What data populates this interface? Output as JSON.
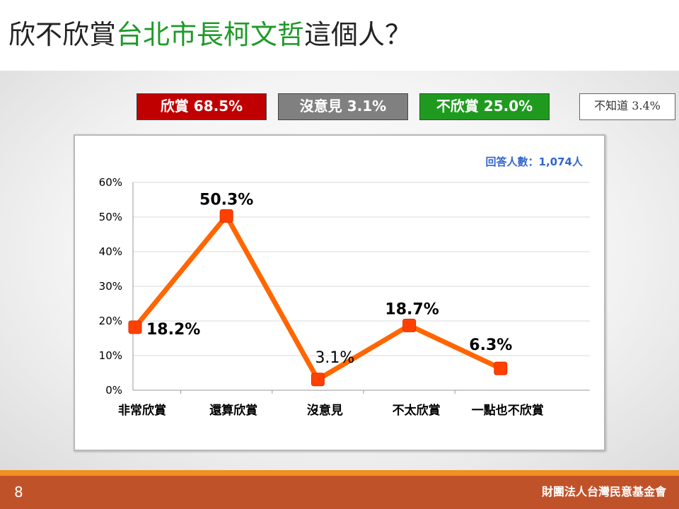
{
  "header": {
    "title_prefix": "欣不欣賞",
    "title_highlight": "台北市長柯文哲",
    "title_suffix": "這個人？"
  },
  "summary": {
    "approve": "欣賞 68.5%",
    "neutral": "沒意見 3.1%",
    "disapprove": "不欣賞 25.0%",
    "unknown": "不知道 3.4%"
  },
  "colors": {
    "approve": "#c00000",
    "neutral": "#808080",
    "disapprove": "#1f9a1f",
    "line": "#ff6600",
    "marker": "#ff4000",
    "sample_text": "#3366cc",
    "footer": "#c0522a"
  },
  "chart_data": {
    "type": "line",
    "sample_note": "回答人數：1,074人",
    "categories": [
      "非常欣賞",
      "還算欣賞",
      "沒意見",
      "不太欣賞",
      "一點也不欣賞"
    ],
    "values": [
      18.2,
      50.3,
      3.1,
      18.7,
      6.3
    ],
    "data_labels": [
      "18.2%",
      "50.3%",
      "3.1%",
      "18.7%",
      "6.3%"
    ],
    "ylim": [
      0,
      60
    ],
    "yticks": [
      0,
      10,
      20,
      30,
      40,
      50,
      60
    ],
    "ytick_labels": [
      "0%",
      "10%",
      "20%",
      "30%",
      "40%",
      "50%",
      "60%"
    ],
    "grid": true,
    "legend": "top"
  },
  "footer": {
    "page_number": "8",
    "organization": "財團法人台灣民意基金會"
  }
}
